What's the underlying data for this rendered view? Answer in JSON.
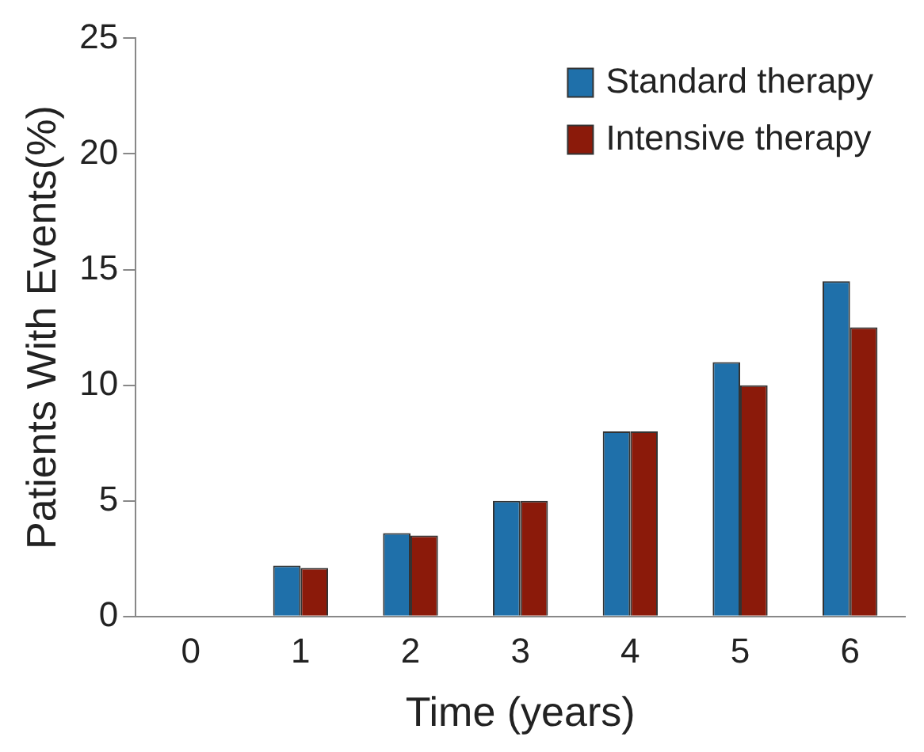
{
  "chart_data": {
    "type": "bar",
    "xlabel": "Time (years)",
    "ylabel": "Patients With Events(%)",
    "categories": [
      "0",
      "1",
      "2",
      "3",
      "4",
      "5",
      "6"
    ],
    "series": [
      {
        "name": "Standard therapy",
        "color": "#1f70aa",
        "values": [
          null,
          2.2,
          3.6,
          5,
          8,
          11,
          14.5
        ]
      },
      {
        "name": "Intensive therapy",
        "color": "#8b1a0a",
        "values": [
          null,
          2.1,
          3.5,
          5,
          8,
          10,
          12.5
        ]
      }
    ],
    "ylim": [
      0,
      25
    ],
    "yticks": [
      0,
      5,
      10,
      15,
      20,
      25
    ],
    "grid": false,
    "legend": "top right"
  }
}
